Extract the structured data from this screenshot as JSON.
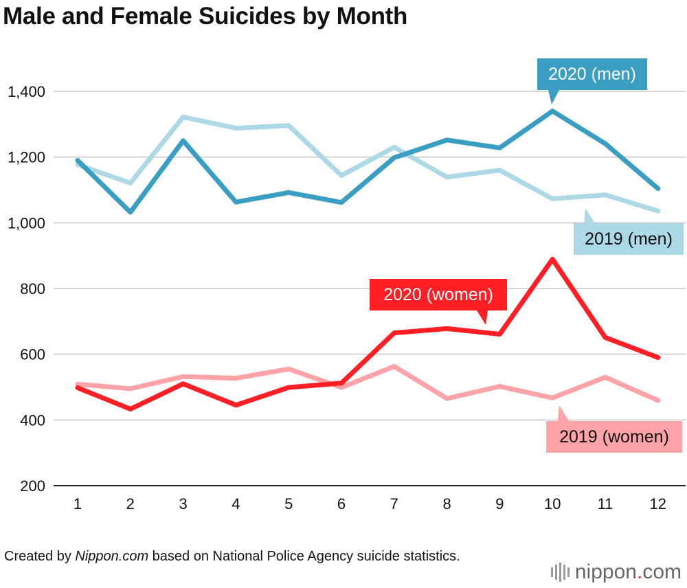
{
  "title": "Male and Female Suicides by Month",
  "footer": {
    "prefix": "Created by ",
    "source_name": "Nippon.com",
    "suffix": " based on National Police Agency suicide statistics."
  },
  "logo": {
    "left": "nippon",
    "dot": ".",
    "right": "com"
  },
  "chart_data": {
    "type": "line",
    "title": "Male and Female Suicides by Month",
    "xlabel": "",
    "ylabel": "",
    "x": [
      1,
      2,
      3,
      4,
      5,
      6,
      7,
      8,
      9,
      10,
      11,
      12
    ],
    "ylim": [
      200,
      1400
    ],
    "yticks": [
      200,
      400,
      600,
      800,
      1000,
      1200,
      1400
    ],
    "ytick_labels": [
      "200",
      "400",
      "600",
      "800",
      "1,000",
      "1,200",
      "1,400"
    ],
    "grid": true,
    "series": [
      {
        "name": "2019 (men)",
        "color": "#add8e6",
        "values": [
          1177,
          1121,
          1322,
          1288,
          1296,
          1144,
          1230,
          1139,
          1160,
          1073,
          1085,
          1036
        ]
      },
      {
        "name": "2019 (women)",
        "color": "#ffa3a8",
        "values": [
          509,
          495,
          532,
          527,
          555,
          499,
          563,
          465,
          502,
          467,
          530,
          459
        ]
      },
      {
        "name": "2020 (men)",
        "color": "#3a9ec2",
        "values": [
          1190,
          1032,
          1250,
          1063,
          1092,
          1062,
          1198,
          1252,
          1228,
          1340,
          1241,
          1104
        ]
      },
      {
        "name": "2020 (women)",
        "color": "#ff1f25",
        "values": [
          498,
          433,
          510,
          445,
          499,
          512,
          665,
          678,
          661,
          889,
          651,
          590
        ]
      }
    ],
    "labels": [
      {
        "series": "2020 (men)",
        "text": "2020 (men)",
        "text_color": "#ffffff"
      },
      {
        "series": "2019 (men)",
        "text": "2019 (men)",
        "text_color": "#111111"
      },
      {
        "series": "2020 (women)",
        "text": "2020 (women)",
        "text_color": "#ffffff"
      },
      {
        "series": "2019 (women)",
        "text": "2019 (women)",
        "text_color": "#111111"
      }
    ]
  }
}
